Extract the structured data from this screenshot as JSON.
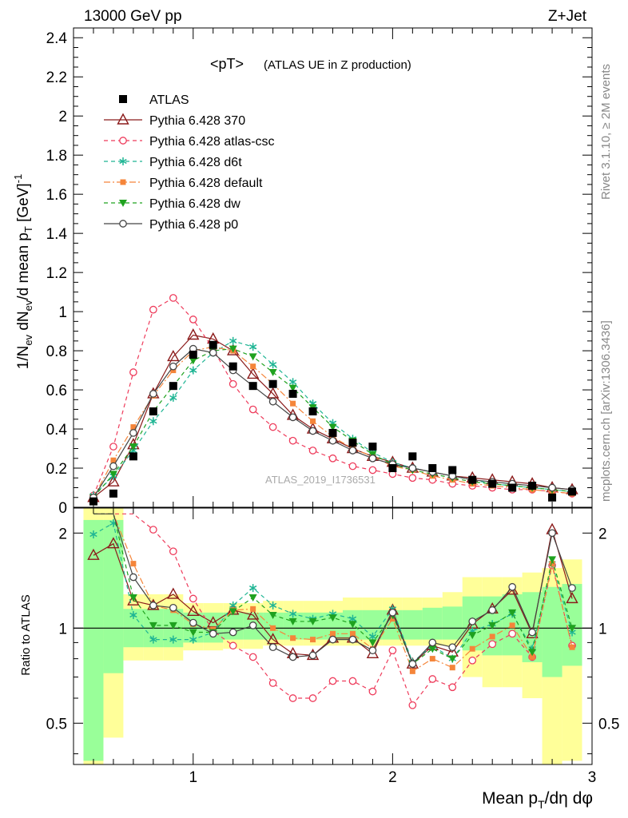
{
  "header": {
    "energy": "13000 GeV pp",
    "process": "Z+Jet"
  },
  "side_text": {
    "rivet": "Rivet 3.1.10, ≥ 2M events",
    "source": "mcplots.cern.ch [arXiv:1306.3436]"
  },
  "chart_data": [
    {
      "type": "scatter",
      "title": "<pT>",
      "subtitle": "(ATLAS UE in Z production)",
      "watermark": "ATLAS_2019_I1736531",
      "ylabel": "1/N_ev dN_ev/d mean p_T [GeV]^-1",
      "xlabel": "Mean p_T/dη dφ",
      "xlim": [
        0.4,
        3.0
      ],
      "ylim": [
        0,
        2.45
      ],
      "yticks": [
        "0",
        "0.2",
        "0.4",
        "0.6",
        "0.8",
        "1",
        "1.2",
        "1.4",
        "1.6",
        "1.8",
        "2",
        "2.2",
        "2.4"
      ],
      "xticks": [
        "1",
        "2",
        "3"
      ],
      "legend_position": "top-left",
      "x": [
        0.5,
        0.6,
        0.7,
        0.8,
        0.9,
        1.0,
        1.1,
        1.2,
        1.3,
        1.4,
        1.5,
        1.6,
        1.7,
        1.8,
        1.9,
        2.0,
        2.1,
        2.2,
        2.3,
        2.4,
        2.5,
        2.6,
        2.7,
        2.8,
        2.9
      ],
      "series": [
        {
          "name": "ATLAS",
          "color": "#000000",
          "marker": "square",
          "line": "none",
          "values": [
            0.03,
            0.07,
            0.26,
            0.49,
            0.62,
            0.78,
            0.83,
            0.72,
            0.62,
            0.63,
            0.58,
            0.49,
            0.38,
            0.33,
            0.31,
            0.2,
            0.26,
            0.2,
            0.19,
            0.14,
            0.12,
            0.1,
            0.11,
            0.05,
            0.08
          ]
        },
        {
          "name": "Pythia 6.428 370",
          "color": "#8b1a1a",
          "marker": "triangle-open",
          "line": "solid",
          "values": [
            0.05,
            0.13,
            0.32,
            0.58,
            0.77,
            0.88,
            0.86,
            0.8,
            0.68,
            0.58,
            0.47,
            0.4,
            0.35,
            0.3,
            0.26,
            0.23,
            0.2,
            0.18,
            0.16,
            0.15,
            0.14,
            0.13,
            0.12,
            0.1,
            0.09
          ]
        },
        {
          "name": "Pythia 6.428 atlas-csc",
          "color": "#ee3b5b",
          "marker": "circle-open",
          "line": "dashed",
          "values": [
            0.06,
            0.31,
            0.69,
            1.01,
            1.07,
            0.96,
            0.81,
            0.63,
            0.5,
            0.41,
            0.34,
            0.29,
            0.25,
            0.21,
            0.19,
            0.17,
            0.15,
            0.14,
            0.12,
            0.11,
            0.1,
            0.09,
            0.09,
            0.08,
            0.07
          ]
        },
        {
          "name": "Pythia 6.428 d6t",
          "color": "#1fb594",
          "marker": "star",
          "line": "dashed",
          "values": [
            0.06,
            0.16,
            0.29,
            0.44,
            0.56,
            0.7,
            0.79,
            0.85,
            0.82,
            0.73,
            0.64,
            0.53,
            0.43,
            0.35,
            0.28,
            0.23,
            0.2,
            0.18,
            0.16,
            0.14,
            0.12,
            0.11,
            0.1,
            0.09,
            0.08
          ]
        },
        {
          "name": "Pythia 6.428 default",
          "color": "#f5853a",
          "marker": "square-small",
          "line": "dashdot",
          "values": [
            0.05,
            0.24,
            0.41,
            0.57,
            0.7,
            0.8,
            0.82,
            0.8,
            0.72,
            0.63,
            0.53,
            0.44,
            0.36,
            0.3,
            0.26,
            0.21,
            0.19,
            0.16,
            0.14,
            0.12,
            0.11,
            0.1,
            0.09,
            0.08,
            0.07
          ]
        },
        {
          "name": "Pythia 6.428 dw",
          "color": "#1fa21f",
          "marker": "triangle-down",
          "line": "dashed",
          "values": [
            0.05,
            0.17,
            0.31,
            0.49,
            0.62,
            0.75,
            0.8,
            0.81,
            0.77,
            0.69,
            0.61,
            0.51,
            0.41,
            0.34,
            0.27,
            0.22,
            0.19,
            0.17,
            0.15,
            0.13,
            0.12,
            0.11,
            0.1,
            0.09,
            0.08
          ]
        },
        {
          "name": "Pythia 6.428 p0",
          "color": "#444444",
          "marker": "circle-open",
          "line": "solid",
          "values": [
            0.05,
            0.21,
            0.38,
            0.58,
            0.72,
            0.81,
            0.79,
            0.7,
            0.62,
            0.54,
            0.46,
            0.39,
            0.34,
            0.29,
            0.25,
            0.22,
            0.2,
            0.18,
            0.16,
            0.14,
            0.13,
            0.12,
            0.11,
            0.1,
            0.09
          ]
        }
      ]
    },
    {
      "type": "line",
      "ylabel": "Ratio to ATLAS",
      "xlabel": "Mean p_T/dη dφ",
      "yscale": "log",
      "ylim": [
        0.37,
        2.4
      ],
      "yticks": [
        "0.5",
        "1",
        "2"
      ],
      "band_yellow_low": [
        0.33,
        0.45,
        0.79,
        0.79,
        0.79,
        0.85,
        0.85,
        0.86,
        0.86,
        0.88,
        0.88,
        0.88,
        0.88,
        0.88,
        0.88,
        0.88,
        0.88,
        0.88,
        0.88,
        0.7,
        0.65,
        0.65,
        0.6,
        0.35,
        0.38
      ],
      "band_yellow_high": [
        2.4,
        2.4,
        1.28,
        1.28,
        1.28,
        1.2,
        1.2,
        1.2,
        1.2,
        1.22,
        1.22,
        1.22,
        1.22,
        1.25,
        1.25,
        1.25,
        1.25,
        1.25,
        1.3,
        1.45,
        1.45,
        1.45,
        1.5,
        1.55,
        1.65
      ],
      "band_green_low": [
        0.38,
        0.72,
        0.87,
        0.87,
        0.87,
        0.9,
        0.9,
        0.92,
        0.92,
        0.92,
        0.92,
        0.92,
        0.92,
        0.92,
        0.92,
        0.92,
        0.92,
        0.92,
        0.92,
        0.85,
        0.82,
        0.82,
        0.78,
        0.7,
        0.76
      ],
      "band_green_high": [
        2.2,
        2.2,
        1.15,
        1.15,
        1.15,
        1.12,
        1.12,
        1.12,
        1.12,
        1.12,
        1.12,
        1.12,
        1.12,
        1.14,
        1.14,
        1.14,
        1.14,
        1.16,
        1.17,
        1.26,
        1.26,
        1.28,
        1.3,
        1.35,
        1.38
      ],
      "series": [
        {
          "name": "Pythia 6.428 370",
          "values": [
            1.7,
            1.85,
            1.22,
            1.18,
            1.28,
            1.13,
            1.04,
            1.14,
            1.1,
            0.92,
            0.83,
            0.82,
            0.93,
            0.93,
            0.83,
            1.14,
            0.77,
            0.88,
            0.84,
            1.03,
            1.15,
            1.32,
            0.96,
            2.05,
            1.24
          ]
        },
        {
          "name": "Pythia 6.428 atlas-csc",
          "values": [
            2.3,
            2.3,
            2.3,
            2.05,
            1.75,
            1.24,
            0.98,
            0.88,
            0.81,
            0.67,
            0.6,
            0.6,
            0.68,
            0.68,
            0.63,
            0.85,
            0.57,
            0.69,
            0.65,
            0.79,
            0.89,
            0.96,
            0.81,
            1.58,
            0.88
          ]
        },
        {
          "name": "Pythia 6.428 d6t",
          "values": [
            1.98,
            2.15,
            1.1,
            0.92,
            0.92,
            0.92,
            0.97,
            1.18,
            1.34,
            1.18,
            1.11,
            1.07,
            1.11,
            1.07,
            0.94,
            1.15,
            0.78,
            0.88,
            0.8,
            0.98,
            1.03,
            1.11,
            0.86,
            1.6,
            0.97
          ]
        },
        {
          "name": "Pythia 6.428 default",
          "values": [
            2.3,
            2.3,
            1.6,
            1.18,
            1.14,
            1.03,
            0.99,
            1.14,
            1.15,
            1.0,
            0.93,
            0.92,
            0.96,
            0.96,
            0.86,
            1.07,
            0.73,
            0.8,
            0.75,
            0.86,
            0.94,
            1.02,
            0.81,
            1.6,
            0.87
          ]
        },
        {
          "name": "Pythia 6.428 dw",
          "values": [
            2.3,
            2.3,
            1.25,
            1.02,
            1.02,
            0.97,
            0.97,
            1.13,
            1.25,
            1.1,
            1.05,
            1.05,
            1.08,
            1.03,
            0.9,
            1.1,
            0.77,
            0.86,
            0.8,
            0.95,
            1.02,
            1.12,
            0.84,
            1.65,
            1.0
          ]
        },
        {
          "name": "Pythia 6.428 p0",
          "values": [
            2.3,
            2.3,
            1.45,
            1.18,
            1.16,
            1.04,
            0.96,
            0.97,
            1.02,
            0.87,
            0.81,
            0.82,
            0.92,
            0.92,
            0.85,
            1.12,
            0.77,
            0.9,
            0.87,
            1.05,
            1.14,
            1.35,
            0.97,
            2.0,
            1.34
          ]
        }
      ]
    }
  ]
}
